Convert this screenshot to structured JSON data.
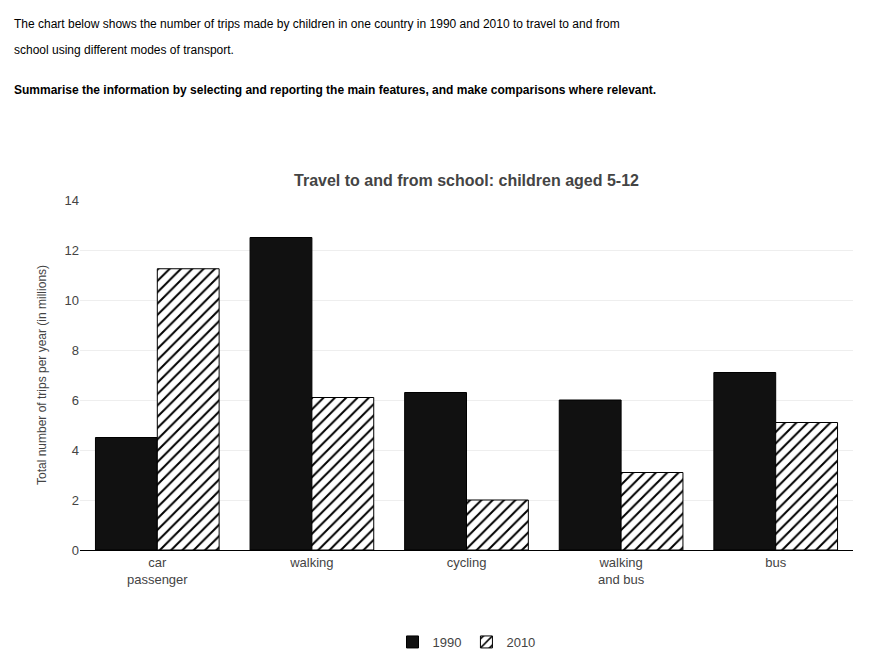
{
  "chart_data": {
    "type": "bar",
    "title": "Travel to and from school: children aged 5-12",
    "annotations": [
      "The chart below shows the number of trips made by children in one country in 1990 and 2010 to travel to and from",
      "school using different modes of transport.",
      "Summarise the information by selecting and reporting the main features, and make comparisons where relevant."
    ],
    "ylabel": "Total number of trips per year (in millions)",
    "categories": [
      "car\npassenger",
      "walking",
      "cycling",
      "walking\nand bus",
      "bus"
    ],
    "series": [
      {
        "name": "1990",
        "color": "#111111",
        "values": [
          4.5,
          12.5,
          6.3,
          6.0,
          7.1
        ]
      },
      {
        "name": "2010",
        "color": "#ffffff",
        "values": [
          11.25,
          6.1,
          2.0,
          3.1,
          5.1
        ]
      }
    ],
    "ylim": [
      0,
      14
    ],
    "yticks": [
      0,
      2,
      4,
      6,
      8,
      10,
      12,
      14
    ],
    "grid": true,
    "legend": "bottom"
  }
}
